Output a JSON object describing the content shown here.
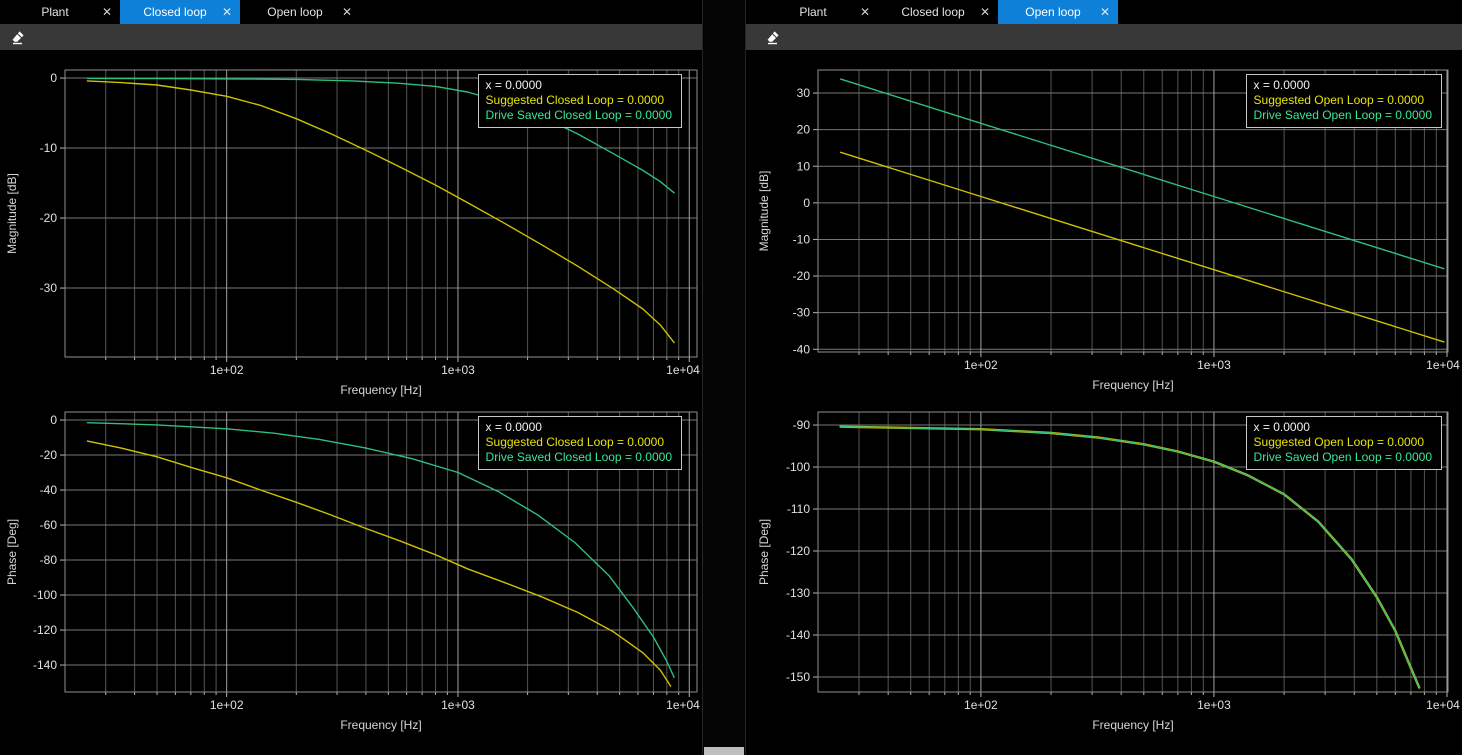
{
  "colors": {
    "accent_tab": "#0f80d7",
    "toolbar_bg": "#383838",
    "plot_bg": "#000000",
    "grid_minor": "#555555",
    "grid_major": "#767676",
    "grid_decade": "#a2a2a2",
    "frame": "#8f8f8f",
    "tick_mark": "#b5b5b5",
    "tick_text": "#e0e0e0",
    "axis_label_text": "#d6d6d6",
    "series_yellow": "#cfc100",
    "series_green": "#2fbe7d",
    "legend_yellow": "#e8e400",
    "legend_green": "#3ce696",
    "legend_header": "#f2f2f2"
  },
  "panels": [
    {
      "name": "closed-loop-panel",
      "tabs": [
        {
          "label": "Plant",
          "close": "✕",
          "active": false
        },
        {
          "label": "Closed loop",
          "close": "✕",
          "active": true
        },
        {
          "label": "Open loop",
          "close": "✕",
          "active": false
        }
      ],
      "toolbar": {
        "tools": [
          {
            "icon": "eraser-icon"
          }
        ]
      },
      "charts": [
        0,
        1
      ]
    },
    {
      "name": "open-loop-panel",
      "tabs": [
        {
          "label": "Plant",
          "close": "✕",
          "active": false
        },
        {
          "label": "Closed loop",
          "close": "✕",
          "active": false
        },
        {
          "label": "Open loop",
          "close": "✕",
          "active": true
        }
      ],
      "toolbar": {
        "tools": [
          {
            "icon": "eraser-icon"
          }
        ]
      },
      "charts": [
        2,
        3
      ]
    }
  ],
  "chart_data": [
    {
      "type": "line",
      "title": "Closed loop magnitude (Bode)",
      "xlabel": "Frequency [Hz]",
      "ylabel": "Magnitude [dB]",
      "x_scale": "log",
      "xlim": [
        20,
        10800
      ],
      "ylim": [
        1.15,
        -39.85
      ],
      "grid": true,
      "x_ticks": [
        {
          "value": 100,
          "label": "1e+02"
        },
        {
          "value": 1000,
          "label": "1e+03"
        },
        {
          "value": 10000,
          "label": "1e+04"
        }
      ],
      "y_ticks": [
        0,
        -10,
        -20,
        -30
      ],
      "legend": {
        "position": "top-right",
        "header": "x = 0.0000",
        "entries": [
          {
            "label": "Suggested Closed Loop = 0.0000",
            "color": "#e8e400"
          },
          {
            "label": "Drive Saved Closed Loop = 0.0000",
            "color": "#3ce696"
          }
        ]
      },
      "series": [
        {
          "name": "Suggested Closed Loop",
          "color": "#cfc100",
          "width": 1.4,
          "points": [
            [
              25,
              -0.4
            ],
            [
              35,
              -0.65
            ],
            [
              50,
              -1.0
            ],
            [
              70,
              -1.7
            ],
            [
              100,
              -2.6
            ],
            [
              140,
              -3.9
            ],
            [
              200,
              -5.8
            ],
            [
              280,
              -7.9
            ],
            [
              400,
              -10.3
            ],
            [
              560,
              -12.7
            ],
            [
              800,
              -15.3
            ],
            [
              1100,
              -17.8
            ],
            [
              1600,
              -20.8
            ],
            [
              2300,
              -23.8
            ],
            [
              3300,
              -26.9
            ],
            [
              4700,
              -30.1
            ],
            [
              6300,
              -33.0
            ],
            [
              7500,
              -35.3
            ],
            [
              8600,
              -37.8
            ]
          ]
        },
        {
          "name": "Drive Saved Closed Loop",
          "color": "#2fbe7d",
          "width": 1.4,
          "points": [
            [
              25,
              -0.05
            ],
            [
              50,
              -0.08
            ],
            [
              100,
              -0.12
            ],
            [
              200,
              -0.2
            ],
            [
              350,
              -0.4
            ],
            [
              560,
              -0.75
            ],
            [
              800,
              -1.2
            ],
            [
              1100,
              -2.0
            ],
            [
              1600,
              -3.5
            ],
            [
              2300,
              -5.5
            ],
            [
              3300,
              -8.0
            ],
            [
              4700,
              -10.8
            ],
            [
              6300,
              -13.2
            ],
            [
              7500,
              -14.8
            ],
            [
              8600,
              -16.4
            ]
          ]
        }
      ]
    },
    {
      "type": "line",
      "title": "Closed loop phase (Bode)",
      "xlabel": "Frequency [Hz]",
      "ylabel": "Phase [Deg]",
      "x_scale": "log",
      "xlim": [
        20,
        10800
      ],
      "ylim": [
        4.6,
        -155.4
      ],
      "grid": true,
      "x_ticks": [
        {
          "value": 100,
          "label": "1e+02"
        },
        {
          "value": 1000,
          "label": "1e+03"
        },
        {
          "value": 10000,
          "label": "1e+04"
        }
      ],
      "y_ticks": [
        0,
        -20,
        -40,
        -60,
        -80,
        -100,
        -120,
        -140
      ],
      "legend": {
        "position": "top-right",
        "header": "x = 0.0000",
        "entries": [
          {
            "label": "Suggested Closed Loop = 0.0000",
            "color": "#e8e400"
          },
          {
            "label": "Drive Saved Closed Loop = 0.0000",
            "color": "#3ce696"
          }
        ]
      },
      "series": [
        {
          "name": "Suggested Closed Loop",
          "color": "#cfc100",
          "width": 1.4,
          "points": [
            [
              25,
              -12
            ],
            [
              35,
              -16
            ],
            [
              50,
              -21
            ],
            [
              70,
              -27
            ],
            [
              100,
              -33
            ],
            [
              140,
              -40
            ],
            [
              200,
              -47
            ],
            [
              280,
              -54
            ],
            [
              400,
              -62
            ],
            [
              560,
              -69
            ],
            [
              800,
              -77
            ],
            [
              1100,
              -85
            ],
            [
              1600,
              -93
            ],
            [
              2300,
              -101
            ],
            [
              3300,
              -110
            ],
            [
              4700,
              -121
            ],
            [
              6300,
              -133
            ],
            [
              7500,
              -143
            ],
            [
              8300,
              -152
            ]
          ]
        },
        {
          "name": "Drive Saved Closed Loop",
          "color": "#2fbe7d",
          "width": 1.4,
          "points": [
            [
              25,
              -1.5
            ],
            [
              50,
              -2.8
            ],
            [
              100,
              -5
            ],
            [
              160,
              -7.5
            ],
            [
              250,
              -11
            ],
            [
              400,
              -16
            ],
            [
              630,
              -22
            ],
            [
              1000,
              -30
            ],
            [
              1500,
              -41
            ],
            [
              2200,
              -54
            ],
            [
              3200,
              -70
            ],
            [
              4500,
              -89
            ],
            [
              5700,
              -107
            ],
            [
              7000,
              -124
            ],
            [
              8000,
              -138
            ],
            [
              8600,
              -147
            ]
          ]
        }
      ]
    },
    {
      "type": "line",
      "title": "Open loop magnitude (Bode)",
      "xlabel": "Frequency [Hz]",
      "ylabel": "Magnitude [dB]",
      "x_scale": "log",
      "xlim": [
        20,
        10100
      ],
      "ylim": [
        36.3,
        -40.75
      ],
      "grid": true,
      "x_ticks": [
        {
          "value": 100,
          "label": "1e+02"
        },
        {
          "value": 1000,
          "label": "1e+03"
        },
        {
          "value": 10000,
          "label": "1e+04"
        }
      ],
      "y_ticks": [
        30,
        20,
        10,
        0,
        -10,
        -20,
        -30,
        -40
      ],
      "legend": {
        "position": "top-right",
        "header": "x = 0.0000",
        "entries": [
          {
            "label": "Suggested Open Loop = 0.0000",
            "color": "#e8e400"
          },
          {
            "label": "Drive Saved Open Loop = 0.0000",
            "color": "#3ce696"
          }
        ]
      },
      "series": [
        {
          "name": "Suggested Open Loop",
          "color": "#cfc100",
          "width": 1.4,
          "points": [
            [
              25,
              13.8
            ],
            [
              100,
              1.75
            ],
            [
              1000,
              -18.25
            ],
            [
              9700,
              -38
            ]
          ]
        },
        {
          "name": "Drive Saved Open Loop",
          "color": "#2fbe7d",
          "width": 1.4,
          "points": [
            [
              25,
              33.8
            ],
            [
              100,
              21.75
            ],
            [
              1000,
              1.75
            ],
            [
              9700,
              -18
            ]
          ]
        }
      ]
    },
    {
      "type": "line",
      "title": "Open loop phase (Bode)",
      "xlabel": "Frequency [Hz]",
      "ylabel": "Phase [Deg]",
      "x_scale": "log",
      "xlim": [
        20,
        10100
      ],
      "ylim": [
        -86.9,
        -153.57
      ],
      "grid": true,
      "x_ticks": [
        {
          "value": 100,
          "label": "1e+02"
        },
        {
          "value": 1000,
          "label": "1e+03"
        },
        {
          "value": 10000,
          "label": "1e+04"
        }
      ],
      "y_ticks": [
        -90,
        -100,
        -110,
        -120,
        -130,
        -140,
        -150
      ],
      "legend": {
        "position": "top-right",
        "header": "x = 0.0000",
        "entries": [
          {
            "label": "Suggested Open Loop = 0.0000",
            "color": "#e8e400"
          },
          {
            "label": "Drive Saved Open Loop = 0.0000",
            "color": "#3ce696"
          }
        ]
      },
      "series": [
        {
          "name": "Suggested Open Loop",
          "color": "#cfc100",
          "width": 2.4,
          "points": [
            [
              25,
              -90.4
            ],
            [
              100,
              -91.0
            ],
            [
              200,
              -91.9
            ],
            [
              320,
              -93.0
            ],
            [
              500,
              -94.6
            ],
            [
              700,
              -96.3
            ],
            [
              1000,
              -98.7
            ],
            [
              1400,
              -102
            ],
            [
              2000,
              -106.5
            ],
            [
              2800,
              -113
            ],
            [
              3900,
              -122
            ],
            [
              5000,
              -131
            ],
            [
              6000,
              -139
            ],
            [
              6900,
              -147
            ],
            [
              7600,
              -152.5
            ]
          ]
        },
        {
          "name": "Drive Saved Open Loop",
          "color": "#2fbe7d",
          "width": 1.4,
          "points": [
            [
              25,
              -90.4
            ],
            [
              100,
              -91.0
            ],
            [
              200,
              -91.9
            ],
            [
              320,
              -93.0
            ],
            [
              500,
              -94.6
            ],
            [
              700,
              -96.3
            ],
            [
              1000,
              -98.7
            ],
            [
              1400,
              -102
            ],
            [
              2000,
              -106.5
            ],
            [
              2800,
              -113
            ],
            [
              3900,
              -122
            ],
            [
              5000,
              -131
            ],
            [
              6000,
              -139
            ],
            [
              6900,
              -147
            ],
            [
              7600,
              -152.5
            ]
          ]
        }
      ]
    }
  ]
}
